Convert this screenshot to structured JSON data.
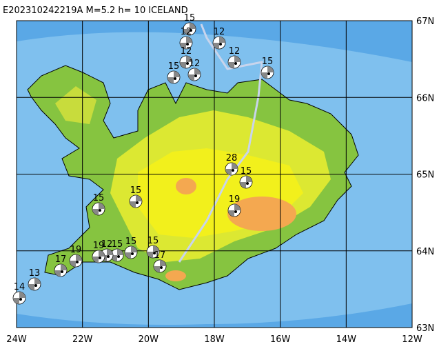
{
  "title": "E202310242219A  M=5.2  h= 10  ICELAND",
  "lon_labels": [
    "24W",
    "22W",
    "20W",
    "18W",
    "16W",
    "14W",
    "12W"
  ],
  "lat_labels": [
    "67N",
    "66N",
    "65N",
    "64N",
    "63N"
  ],
  "events": [
    {
      "depth_label": "15"
    },
    {
      "depth_label": "12"
    },
    {
      "depth_label": "12"
    },
    {
      "depth_label": "12"
    },
    {
      "depth_label": "15"
    },
    {
      "depth_label": "12"
    },
    {
      "depth_label": "12"
    },
    {
      "depth_label": "15"
    },
    {
      "depth_label": "28"
    },
    {
      "depth_label": "15"
    },
    {
      "depth_label": "19"
    },
    {
      "depth_label": "15"
    },
    {
      "depth_label": "15"
    },
    {
      "depth_label": "15"
    },
    {
      "depth_label": "17"
    },
    {
      "depth_label": "15"
    },
    {
      "depth_label": "15"
    },
    {
      "depth_label": "12"
    },
    {
      "depth_label": "19"
    },
    {
      "depth_label": "19"
    },
    {
      "depth_label": "17"
    },
    {
      "depth_label": "13"
    },
    {
      "depth_label": "14"
    }
  ]
}
